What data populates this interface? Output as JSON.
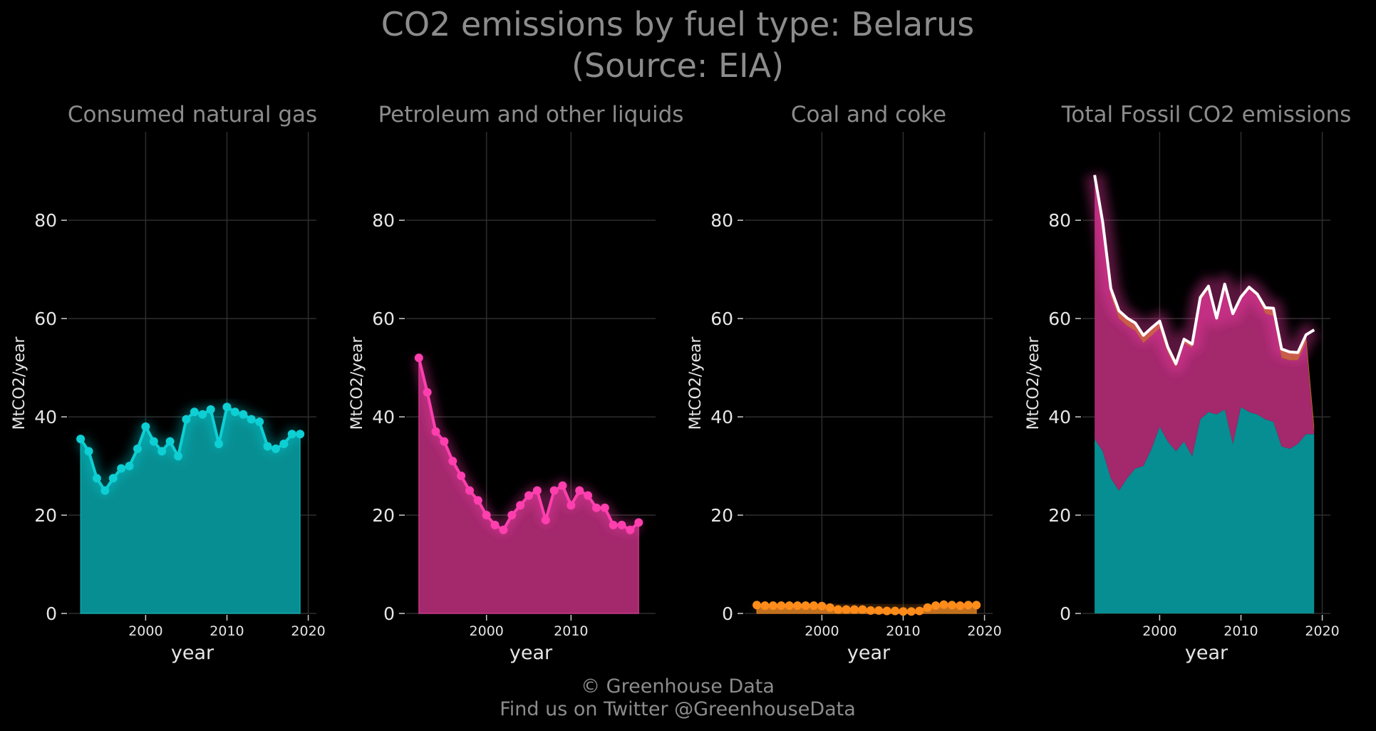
{
  "title_line1": "CO2 emissions by fuel type: Belarus",
  "title_line2": "(Source: EIA)",
  "footer_line1": "© Greenhouse Data",
  "footer_line2": "Find us on Twitter @GreenhouseData",
  "colors": {
    "gas": "#0ecfd3",
    "gas_fill": "#078e92",
    "petroleum": "#ff3fae",
    "petroleum_fill": "#a3286c",
    "coal": "#ff8c1a",
    "coal_fill": "#b36a1f",
    "total": "#ffffff",
    "background": "#000000"
  },
  "chart_data": [
    {
      "type": "area",
      "title": "Consumed natural gas",
      "xlabel": "year",
      "ylabel": "MtCO2/year",
      "ylim": [
        0,
        98
      ],
      "xlim": [
        1990.5,
        2021
      ],
      "xticks": [
        2000,
        2010,
        2020
      ],
      "yticks": [
        0,
        20,
        40,
        60,
        80
      ],
      "grid": true,
      "series": [
        {
          "x": [
            1992,
            1993,
            1994,
            1995,
            1996,
            1997,
            1998,
            1999,
            2000,
            2001,
            2002,
            2003,
            2004,
            2005,
            2006,
            2007,
            2008,
            2009,
            2010,
            2011,
            2012,
            2013,
            2014,
            2015,
            2016,
            2017,
            2018,
            2019
          ],
          "values": [
            35.5,
            33,
            27.5,
            25,
            27.5,
            29.5,
            30,
            33.5,
            38,
            35,
            33,
            35,
            32,
            39.5,
            41,
            40.5,
            41.5,
            34.5,
            42,
            41,
            40.5,
            39.5,
            39,
            34,
            33.5,
            34.5,
            36.5,
            36.5
          ]
        }
      ]
    },
    {
      "type": "area",
      "title": "Petroleum and other liquids",
      "xlabel": "year",
      "ylabel": "MtCO2/year",
      "ylim": [
        0,
        98
      ],
      "xlim": [
        1990.5,
        2020
      ],
      "xticks": [
        2000,
        2010
      ],
      "yticks": [
        0,
        20,
        40,
        60,
        80
      ],
      "grid": true,
      "series": [
        {
          "x": [
            1992,
            1993,
            1994,
            1995,
            1996,
            1997,
            1998,
            1999,
            2000,
            2001,
            2002,
            2003,
            2004,
            2005,
            2006,
            2007,
            2008,
            2009,
            2010,
            2011,
            2012,
            2013,
            2014,
            2015,
            2016,
            2017,
            2018
          ],
          "values": [
            52,
            45,
            37,
            35,
            31,
            28,
            25,
            23,
            20,
            18,
            17,
            20,
            22,
            24,
            25,
            19,
            25,
            26,
            22,
            25,
            24,
            21.5,
            21.5,
            18,
            18,
            17,
            18.5
          ]
        }
      ]
    },
    {
      "type": "area",
      "title": "Coal and coke",
      "xlabel": "year",
      "ylabel": "MtCO2/year",
      "ylim": [
        0,
        98
      ],
      "xlim": [
        1990.5,
        2021
      ],
      "xticks": [
        2000,
        2010,
        2020
      ],
      "yticks": [
        0,
        20,
        40,
        60,
        80
      ],
      "grid": true,
      "series": [
        {
          "x": [
            1992,
            1993,
            1994,
            1995,
            1996,
            1997,
            1998,
            1999,
            2000,
            2001,
            2002,
            2003,
            2004,
            2005,
            2006,
            2007,
            2008,
            2009,
            2010,
            2011,
            2012,
            2013,
            2014,
            2015,
            2016,
            2017,
            2018,
            2019
          ],
          "values": [
            1.7,
            1.6,
            1.6,
            1.6,
            1.6,
            1.6,
            1.6,
            1.6,
            1.5,
            1.2,
            0.8,
            0.8,
            0.8,
            0.8,
            0.6,
            0.6,
            0.5,
            0.5,
            0.4,
            0.4,
            0.5,
            1.2,
            1.6,
            1.8,
            1.7,
            1.6,
            1.7,
            1.7
          ]
        }
      ]
    },
    {
      "type": "area",
      "title": "Total Fossil CO2 emissions",
      "xlabel": "year",
      "ylabel": "MtCO2/year",
      "ylim": [
        0,
        98
      ],
      "xlim": [
        1990.5,
        2021
      ],
      "xticks": [
        2000,
        2010,
        2020
      ],
      "yticks": [
        0,
        20,
        40,
        60,
        80
      ],
      "grid": true,
      "stacked": true,
      "series": [
        {
          "x": [
            1992,
            1993,
            1994,
            1995,
            1996,
            1997,
            1998,
            1999,
            2000,
            2001,
            2002,
            2003,
            2004,
            2005,
            2006,
            2007,
            2008,
            2009,
            2010,
            2011,
            2012,
            2013,
            2014,
            2015,
            2016,
            2017,
            2018,
            2019
          ],
          "values": [
            35.5,
            33,
            27.5,
            25,
            27.5,
            29.5,
            30,
            33.5,
            38,
            35,
            33,
            35,
            32,
            39.5,
            41,
            40.5,
            41.5,
            34.5,
            42,
            41,
            40.5,
            39.5,
            39,
            34,
            33.5,
            34.5,
            36.5,
            36.5
          ]
        },
        {
          "x": [
            1992,
            1993,
            1994,
            1995,
            1996,
            1997,
            1998,
            1999,
            2000,
            2001,
            2002,
            2003,
            2004,
            2005,
            2006,
            2007,
            2008,
            2009,
            2010,
            2011,
            2012,
            2013,
            2014,
            2015,
            2016,
            2017,
            2018
          ],
          "values": [
            52,
            45,
            37,
            35,
            31,
            28,
            25,
            23,
            20,
            18,
            17,
            20,
            22,
            24,
            25,
            19,
            25,
            26,
            22,
            25,
            24,
            21.5,
            21.5,
            18,
            18,
            17,
            18.5
          ]
        },
        {
          "x": [
            1992,
            1993,
            1994,
            1995,
            1996,
            1997,
            1998,
            1999,
            2000,
            2001,
            2002,
            2003,
            2004,
            2005,
            2006,
            2007,
            2008,
            2009,
            2010,
            2011,
            2012,
            2013,
            2014,
            2015,
            2016,
            2017,
            2018,
            2019
          ],
          "values": [
            1.7,
            1.6,
            1.6,
            1.6,
            1.6,
            1.6,
            1.6,
            1.6,
            1.5,
            1.2,
            0.8,
            0.8,
            0.8,
            0.8,
            0.6,
            0.6,
            0.5,
            0.5,
            0.4,
            0.4,
            0.5,
            1.2,
            1.6,
            1.8,
            1.7,
            1.6,
            1.7,
            1.7
          ]
        }
      ]
    }
  ]
}
